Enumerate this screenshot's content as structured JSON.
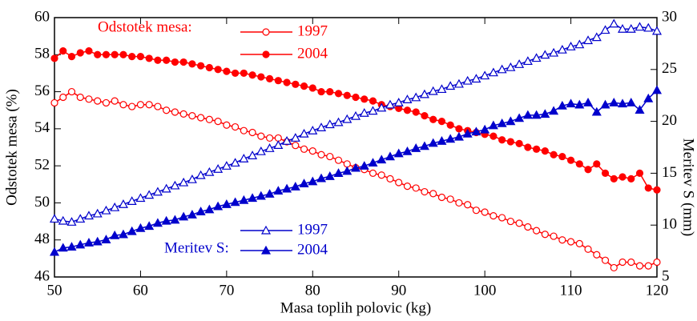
{
  "chart_data": {
    "type": "line",
    "xlabel": "Masa toplih polovic (kg)",
    "ylabel": "Odstotek mesa (%)",
    "y2label": "Meritev S (mm)",
    "annotations": [
      "Odstotek mesa:",
      "Meritev S:"
    ],
    "x": [
      50,
      51,
      52,
      53,
      54,
      55,
      56,
      57,
      58,
      59,
      60,
      61,
      62,
      63,
      64,
      65,
      66,
      67,
      68,
      69,
      70,
      71,
      72,
      73,
      74,
      75,
      76,
      77,
      78,
      79,
      80,
      81,
      82,
      83,
      84,
      85,
      86,
      87,
      88,
      89,
      90,
      91,
      92,
      93,
      94,
      95,
      96,
      97,
      98,
      99,
      100,
      101,
      102,
      103,
      104,
      105,
      106,
      107,
      108,
      109,
      110,
      111,
      112,
      113,
      114,
      115,
      116,
      117,
      118,
      119,
      120
    ],
    "xlim": [
      50,
      120
    ],
    "xticks": [
      50,
      60,
      70,
      80,
      90,
      100,
      110,
      120
    ],
    "ylim": [
      46,
      60
    ],
    "yticks": [
      46,
      48,
      50,
      52,
      54,
      56,
      58,
      60
    ],
    "y2lim": [
      5,
      30
    ],
    "y2ticks": [
      5,
      10,
      15,
      20,
      25,
      30
    ],
    "series": [
      {
        "name": "1997",
        "color": "#ff0000",
        "marker": "open-circle",
        "axis": "y",
        "values": [
          55.4,
          55.7,
          56.0,
          55.7,
          55.6,
          55.5,
          55.4,
          55.5,
          55.3,
          55.2,
          55.3,
          55.3,
          55.2,
          55.0,
          54.9,
          54.8,
          54.7,
          54.6,
          54.5,
          54.4,
          54.2,
          54.1,
          53.9,
          53.8,
          53.6,
          53.5,
          53.5,
          53.3,
          53.1,
          52.9,
          52.8,
          52.6,
          52.5,
          52.3,
          52.1,
          51.9,
          51.8,
          51.6,
          51.5,
          51.3,
          51.1,
          50.9,
          50.8,
          50.6,
          50.5,
          50.3,
          50.2,
          50.0,
          49.9,
          49.6,
          49.5,
          49.3,
          49.2,
          49.0,
          48.9,
          48.7,
          48.5,
          48.3,
          48.2,
          48.0,
          47.9,
          47.8,
          47.5,
          47.2,
          46.9,
          46.5,
          46.8,
          46.8,
          46.6,
          46.6,
          46.8
        ]
      },
      {
        "name": "2004",
        "color": "#ff0000",
        "marker": "filled-circle",
        "axis": "y",
        "values": [
          57.8,
          58.2,
          57.9,
          58.1,
          58.2,
          58.0,
          58.0,
          58.0,
          58.0,
          57.9,
          57.9,
          57.8,
          57.7,
          57.7,
          57.6,
          57.6,
          57.5,
          57.4,
          57.3,
          57.2,
          57.1,
          57.0,
          57.0,
          56.9,
          56.8,
          56.7,
          56.6,
          56.5,
          56.4,
          56.3,
          56.2,
          56.0,
          56.0,
          55.9,
          55.8,
          55.7,
          55.6,
          55.5,
          55.3,
          55.2,
          55.1,
          55.0,
          54.9,
          54.7,
          54.5,
          54.4,
          54.2,
          54.0,
          53.9,
          53.8,
          53.7,
          53.6,
          53.4,
          53.3,
          53.2,
          53.0,
          52.9,
          52.8,
          52.6,
          52.5,
          52.3,
          52.1,
          51.8,
          52.1,
          51.6,
          51.3,
          51.4,
          51.3,
          51.6,
          50.8,
          50.7
        ]
      },
      {
        "name": "1997",
        "color": "#0000cc",
        "marker": "open-triangle",
        "axis": "y2",
        "values": [
          10.6,
          10.4,
          10.3,
          10.6,
          10.9,
          11.1,
          11.4,
          11.7,
          12.0,
          12.3,
          12.6,
          12.9,
          13.2,
          13.5,
          13.8,
          14.1,
          14.4,
          14.8,
          15.1,
          15.4,
          15.7,
          16.0,
          16.4,
          16.7,
          17.1,
          17.4,
          17.7,
          18.1,
          18.4,
          18.8,
          19.1,
          19.4,
          19.7,
          19.9,
          20.2,
          20.5,
          20.8,
          21.0,
          21.3,
          21.6,
          21.8,
          22.1,
          22.3,
          22.6,
          22.9,
          23.1,
          23.4,
          23.6,
          23.9,
          24.1,
          24.4,
          24.7,
          25.0,
          25.2,
          25.5,
          25.8,
          26.1,
          26.4,
          26.6,
          26.9,
          27.2,
          27.4,
          27.8,
          28.1,
          28.8,
          29.4,
          28.9,
          28.9,
          29.1,
          29.0,
          28.7
        ]
      },
      {
        "name": "2004",
        "color": "#0000cc",
        "marker": "filled-triangle",
        "axis": "y2",
        "values": [
          7.4,
          7.8,
          7.9,
          8.1,
          8.3,
          8.4,
          8.6,
          9.0,
          9.1,
          9.4,
          9.7,
          9.9,
          10.2,
          10.4,
          10.5,
          10.8,
          11.0,
          11.3,
          11.5,
          11.8,
          12.0,
          12.2,
          12.4,
          12.6,
          12.8,
          13.0,
          13.3,
          13.5,
          13.7,
          14.0,
          14.2,
          14.5,
          14.7,
          15.0,
          15.2,
          15.5,
          15.7,
          16.0,
          16.3,
          16.6,
          16.9,
          17.1,
          17.4,
          17.6,
          17.9,
          18.1,
          18.3,
          18.5,
          18.8,
          19.0,
          19.2,
          19.6,
          19.8,
          20.0,
          20.3,
          20.6,
          20.6,
          20.7,
          21.0,
          21.5,
          21.7,
          21.6,
          21.8,
          20.9,
          21.6,
          21.8,
          21.7,
          21.8,
          21.1,
          22.2,
          23.0
        ]
      }
    ]
  }
}
